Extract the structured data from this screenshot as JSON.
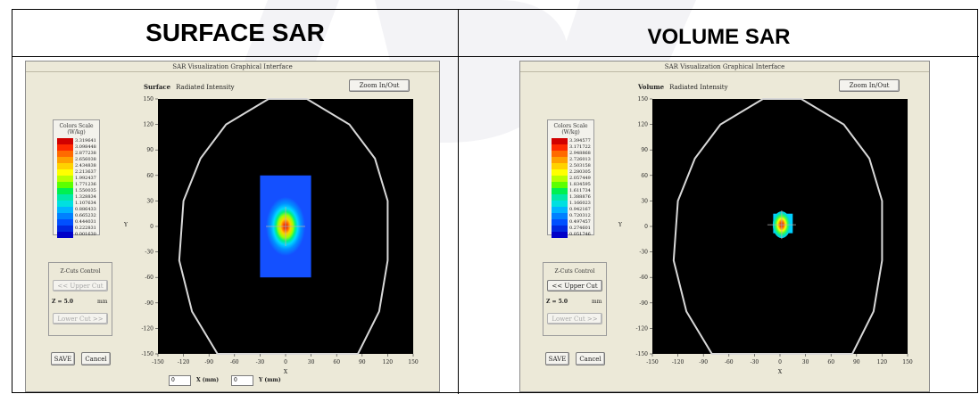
{
  "headers": {
    "left": "SURFACE SAR",
    "right": "VOLUME SAR"
  },
  "windows": [
    {
      "id": "surface",
      "title": "SAR Visualization Graphical Interface",
      "zoom_label": "Zoom In/Out",
      "plot_type": "Surface",
      "plot_subtitle": "Radiated Intensity",
      "scale_title": "Colors Scale",
      "scale_units": "(W/kg)",
      "scale_values": [
        "3.319641",
        "3.098448",
        "2.877238",
        "2.656038",
        "2.434838",
        "2.213637",
        "1.992437",
        "1.771236",
        "1.550035",
        "1.328834",
        "1.107634",
        "0.886433",
        "0.665232",
        "0.444031",
        "0.222831",
        "0.001630"
      ],
      "zcut_title": "Z-Cuts Control",
      "upper_cut": "<< Upper Cut",
      "z_label": "Z = 5.0",
      "z_unit": "mm",
      "lower_cut": "Lower Cut >>",
      "save": "SAVE",
      "cancel": "Cancel",
      "x_label": "X",
      "y_label": "Y",
      "x_field": "0",
      "x_unit": "X (mm)",
      "y_field": "0",
      "y_unit": "Y (mm)",
      "x_ticks": [
        "-150",
        "-120",
        "-90",
        "-60",
        "-30",
        "0",
        "30",
        "60",
        "90",
        "120",
        "150"
      ],
      "y_ticks": [
        "150",
        "120",
        "90",
        "60",
        "30",
        "0",
        "-30",
        "-60",
        "-90",
        "-120",
        "-150"
      ],
      "scan_area": {
        "x_min": -30,
        "x_max": 30,
        "y_min": -60,
        "y_max": 60
      },
      "peak": {
        "x": 0,
        "y": 0
      }
    },
    {
      "id": "volume",
      "title": "SAR Visualization Graphical Interface",
      "zoom_label": "Zoom In/Out",
      "plot_type": "Volume",
      "plot_subtitle": "Radiated Intensity",
      "scale_title": "Colors Scale",
      "scale_units": "(W/kg)",
      "scale_values": [
        "3.394577",
        "3.171722",
        "2.948868",
        "2.726013",
        "2.503158",
        "2.280305",
        "2.057449",
        "1.834595",
        "1.611734",
        "1.388876",
        "1.166023",
        "0.942167",
        "0.720312",
        "0.497457",
        "0.274601",
        "0.051746"
      ],
      "zcut_title": "Z-Cuts Control",
      "upper_cut": "<< Upper Cut",
      "z_label": "Z = 5.0",
      "z_unit": "mm",
      "lower_cut": "Lower Cut >>",
      "save": "SAVE",
      "cancel": "Cancel",
      "x_label": "X",
      "y_label": "Y",
      "x_ticks": [
        "-150",
        "-120",
        "-90",
        "-60",
        "-30",
        "0",
        "30",
        "60",
        "90",
        "120",
        "150"
      ],
      "y_ticks": [
        "150",
        "120",
        "90",
        "60",
        "30",
        "0",
        "-30",
        "-60",
        "-90",
        "-120",
        "-150"
      ],
      "scan_area": {
        "x_min": -8,
        "x_max": 15,
        "y_min": -8,
        "y_max": 15
      },
      "peak": {
        "x": 2,
        "y": 2
      }
    }
  ],
  "colors": [
    "#d10000",
    "#ff2a00",
    "#ff6a00",
    "#ffa000",
    "#ffd200",
    "#ffff00",
    "#b8ff00",
    "#5cff00",
    "#00f050",
    "#00e8a8",
    "#00e0e0",
    "#00b4ff",
    "#0080ff",
    "#0050ff",
    "#0028e0",
    "#0000c8"
  ]
}
